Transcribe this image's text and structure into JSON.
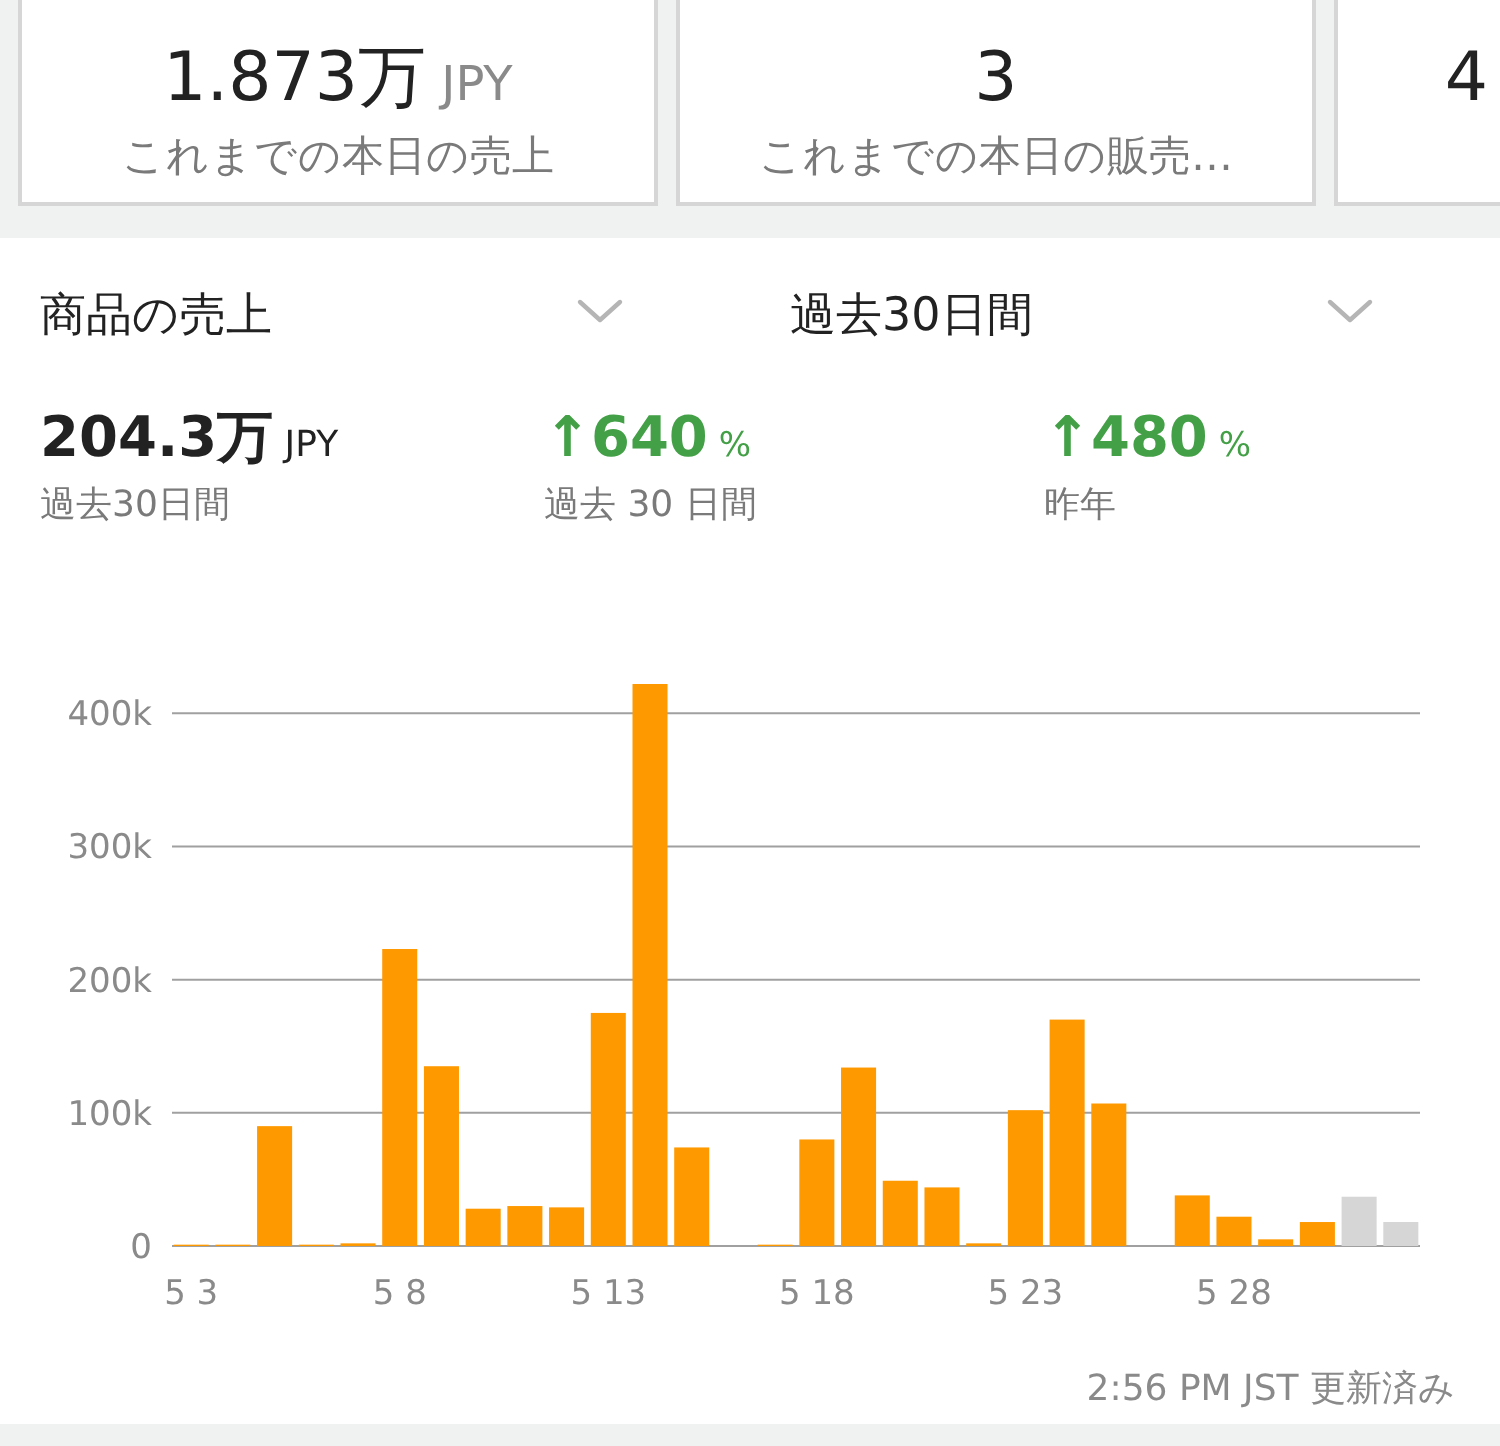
{
  "chart_data": [
    {
      "type": "other",
      "annotations": [
        "1.873万 JPY",
        "これまでの本日の売上",
        "3",
        "これまでの本日の販売…",
        "4"
      ]
    },
    {
      "type": "bar",
      "title": "商品の売上",
      "subtitle": "過去30日間",
      "categories": [
        "5 3",
        null,
        null,
        null,
        null,
        "5 8",
        null,
        null,
        null,
        null,
        "5 13",
        null,
        null,
        null,
        null,
        "5 18",
        null,
        null,
        null,
        null,
        "5 23",
        null,
        null,
        null,
        null,
        "5 28",
        null,
        null,
        null,
        null
      ],
      "values": [
        1000,
        1000,
        90000,
        1000,
        2000,
        223000,
        135000,
        28000,
        30000,
        29000,
        175000,
        422000,
        74000,
        0,
        1000,
        80000,
        134000,
        49000,
        44000,
        2000,
        102000,
        170000,
        107000,
        0,
        38000,
        22000,
        5000,
        18000,
        37000,
        18000
      ],
      "colors": [
        "#ff9900",
        "#ff9900",
        "#ff9900",
        "#ff9900",
        "#ff9900",
        "#ff9900",
        "#ff9900",
        "#ff9900",
        "#ff9900",
        "#ff9900",
        "#ff9900",
        "#ff9900",
        "#ff9900",
        "#ff9900",
        "#ff9900",
        "#ff9900",
        "#ff9900",
        "#ff9900",
        "#ff9900",
        "#ff9900",
        "#ff9900",
        "#ff9900",
        "#ff9900",
        "#ff9900",
        "#ff9900",
        "#ff9900",
        "#ff9900",
        "#ff9900",
        "#d6d6d6",
        "#d6d6d6"
      ],
      "ylim": [
        0,
        422000
      ],
      "yticks": [
        0,
        {
          "value": 100000,
          "label": "100k"
        },
        {
          "value": 200000,
          "label": "200k"
        },
        {
          "value": 300000,
          "label": "300k"
        },
        {
          "value": 400000,
          "label": "400k"
        }
      ],
      "grid": "y",
      "annotations": [
        "204.3万 JPY",
        "過去30日間",
        "↑640 %",
        "過去 30 日間",
        "↑480 %",
        "昨年",
        "2:56 PM JST 更新済み"
      ]
    }
  ]
}
